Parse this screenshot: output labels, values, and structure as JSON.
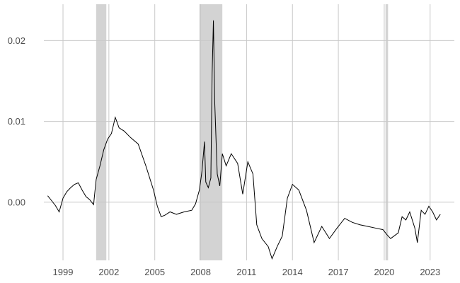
{
  "chart_data": {
    "type": "line",
    "title": "",
    "xlabel": "",
    "ylabel": "",
    "xlim": [
      "1997-10-01",
      "2024-08-01"
    ],
    "ylim": [
      -0.0072,
      0.0245
    ],
    "grid": true,
    "x_ticks": [
      "1999",
      "2002",
      "2005",
      "2008",
      "2011",
      "2014",
      "2017",
      "2020",
      "2023"
    ],
    "y_ticks": [
      "0.00",
      "0.01",
      "0.02"
    ],
    "shaded_periods": [
      {
        "start": "2001-03",
        "end": "2001-11"
      },
      {
        "start": "2007-12",
        "end": "2009-06"
      },
      {
        "start": "2020-02",
        "end": "2020-04"
      }
    ],
    "colors": {
      "line": "#000000",
      "shade": "#d3d3d3",
      "grid": "#c8c8c8",
      "text": "#4d4d4d"
    },
    "series": [
      {
        "points": [
          [
            "1998-01",
            0.0008
          ],
          [
            "1998-04",
            0.0002
          ],
          [
            "1998-07",
            -0.0004
          ],
          [
            "1998-10",
            -0.0012
          ],
          [
            "1999-01",
            0.0005
          ],
          [
            "1999-04",
            0.0013
          ],
          [
            "1999-07",
            0.0018
          ],
          [
            "1999-10",
            0.0022
          ],
          [
            "2000-01",
            0.0024
          ],
          [
            "2000-04",
            0.0015
          ],
          [
            "2000-07",
            0.0007
          ],
          [
            "2000-10",
            0.0003
          ],
          [
            "2001-01",
            -0.0003
          ],
          [
            "2001-03",
            0.0028
          ],
          [
            "2001-06",
            0.0045
          ],
          [
            "2001-09",
            0.0065
          ],
          [
            "2001-12",
            0.0078
          ],
          [
            "2002-03",
            0.0085
          ],
          [
            "2002-06",
            0.0105
          ],
          [
            "2002-09",
            0.0092
          ],
          [
            "2003-01",
            0.0088
          ],
          [
            "2003-06",
            0.008
          ],
          [
            "2003-12",
            0.0072
          ],
          [
            "2004-06",
            0.0045
          ],
          [
            "2004-12",
            0.0015
          ],
          [
            "2005-03",
            -0.0005
          ],
          [
            "2005-06",
            -0.0018
          ],
          [
            "2005-09",
            -0.0016
          ],
          [
            "2006-01",
            -0.0012
          ],
          [
            "2006-06",
            -0.0015
          ],
          [
            "2006-12",
            -0.0012
          ],
          [
            "2007-06",
            -0.001
          ],
          [
            "2007-09",
            -0.0002
          ],
          [
            "2007-12",
            0.0015
          ],
          [
            "2008-02",
            0.0038
          ],
          [
            "2008-04",
            0.0075
          ],
          [
            "2008-05",
            0.0025
          ],
          [
            "2008-07",
            0.0018
          ],
          [
            "2008-09",
            0.003
          ],
          [
            "2008-10",
            0.016
          ],
          [
            "2008-11",
            0.0225
          ],
          [
            "2008-12",
            0.0125
          ],
          [
            "2009-02",
            0.0035
          ],
          [
            "2009-04",
            0.002
          ],
          [
            "2009-06",
            0.006
          ],
          [
            "2009-09",
            0.0045
          ],
          [
            "2010-01",
            0.006
          ],
          [
            "2010-06",
            0.0048
          ],
          [
            "2010-10",
            0.001
          ],
          [
            "2011-02",
            0.005
          ],
          [
            "2011-06",
            0.0035
          ],
          [
            "2011-09",
            -0.0028
          ],
          [
            "2012-01",
            -0.0045
          ],
          [
            "2012-06",
            -0.0055
          ],
          [
            "2012-09",
            -0.007
          ],
          [
            "2013-01",
            -0.0055
          ],
          [
            "2013-05",
            -0.0042
          ],
          [
            "2013-09",
            0.0005
          ],
          [
            "2014-01",
            0.0022
          ],
          [
            "2014-06",
            0.0015
          ],
          [
            "2014-12",
            -0.001
          ],
          [
            "2015-06",
            -0.005
          ],
          [
            "2015-12",
            -0.003
          ],
          [
            "2016-06",
            -0.0045
          ],
          [
            "2016-12",
            -0.0032
          ],
          [
            "2017-06",
            -0.002
          ],
          [
            "2017-12",
            -0.0025
          ],
          [
            "2018-06",
            -0.0028
          ],
          [
            "2018-12",
            -0.003
          ],
          [
            "2019-06",
            -0.0032
          ],
          [
            "2019-12",
            -0.0034
          ],
          [
            "2020-03",
            -0.004
          ],
          [
            "2020-06",
            -0.0045
          ],
          [
            "2020-12",
            -0.0038
          ],
          [
            "2021-03",
            -0.0018
          ],
          [
            "2021-06",
            -0.0022
          ],
          [
            "2021-09",
            -0.0012
          ],
          [
            "2022-01",
            -0.0032
          ],
          [
            "2022-03",
            -0.005
          ],
          [
            "2022-06",
            -0.001
          ],
          [
            "2022-09",
            -0.0015
          ],
          [
            "2022-12",
            -0.0005
          ],
          [
            "2023-03",
            -0.0012
          ],
          [
            "2023-06",
            -0.0022
          ],
          [
            "2023-09",
            -0.0015
          ]
        ]
      }
    ]
  }
}
